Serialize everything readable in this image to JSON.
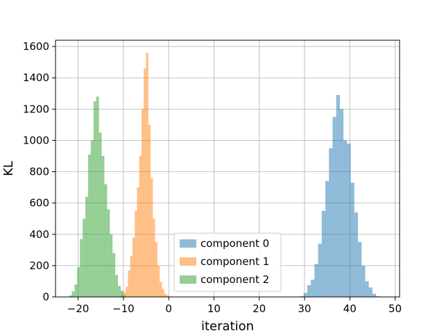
{
  "chart_data": {
    "type": "histogram",
    "title": "",
    "xlabel": "iteration",
    "ylabel": "KL",
    "xlim": [
      -25,
      51
    ],
    "ylim": [
      0,
      1640
    ],
    "xticks": [
      -20,
      -10,
      0,
      10,
      20,
      30,
      40,
      50
    ],
    "yticks": [
      0,
      200,
      400,
      600,
      800,
      1000,
      1200,
      1400,
      1600
    ],
    "grid": true,
    "legend_position": "lower center",
    "series": [
      {
        "name": "component 0",
        "color": "#1f77b4",
        "alpha": 0.5,
        "bin_edges": [
          29.0,
          29.8,
          30.6,
          31.4,
          32.2,
          33.0,
          33.8,
          34.6,
          35.4,
          36.2,
          37.0,
          37.8,
          38.6,
          39.4,
          40.2,
          41.0,
          41.8,
          42.6,
          43.4,
          44.2,
          45.0,
          45.8,
          46.6
        ],
        "counts": [
          5,
          25,
          75,
          110,
          210,
          340,
          550,
          740,
          950,
          1150,
          1290,
          1200,
          1000,
          980,
          730,
          540,
          350,
          200,
          100,
          60,
          20,
          5
        ]
      },
      {
        "name": "component 1",
        "color": "#ff7f0e",
        "alpha": 0.5,
        "bin_edges": [
          -11.0,
          -10.5,
          -10.0,
          -9.5,
          -9.0,
          -8.5,
          -8.0,
          -7.5,
          -7.0,
          -6.5,
          -6.0,
          -5.5,
          -5.0,
          -4.5,
          -4.0,
          -3.5,
          -3.0,
          -2.5,
          -2.0,
          -1.5,
          -1.0,
          -0.5,
          0.0,
          0.5
        ],
        "counts": [
          5,
          15,
          30,
          65,
          170,
          260,
          380,
          550,
          700,
          900,
          1200,
          1460,
          1560,
          1100,
          760,
          500,
          350,
          200,
          95,
          50,
          20,
          10,
          5
        ]
      },
      {
        "name": "component 2",
        "color": "#2ca02c",
        "alpha": 0.5,
        "bin_edges": [
          -22.0,
          -21.4,
          -20.8,
          -20.2,
          -19.6,
          -19.0,
          -18.4,
          -17.8,
          -17.2,
          -16.6,
          -16.0,
          -15.4,
          -14.8,
          -14.2,
          -13.6,
          -13.0,
          -12.4,
          -11.8,
          -11.2,
          -10.6,
          -10.0,
          -9.4
        ],
        "counts": [
          10,
          35,
          80,
          190,
          370,
          500,
          640,
          910,
          1000,
          1250,
          1280,
          1050,
          900,
          720,
          560,
          400,
          280,
          140,
          70,
          40,
          10
        ]
      }
    ]
  }
}
